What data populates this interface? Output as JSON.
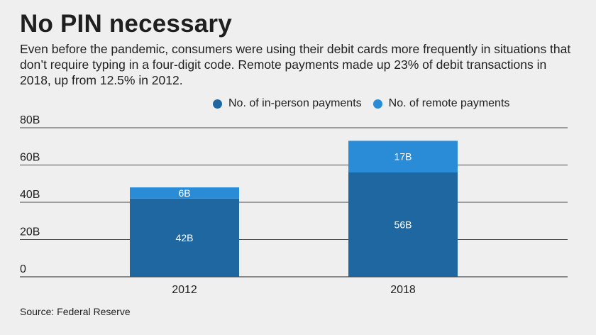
{
  "title": "No PIN necessary",
  "subtitle": "Even before the pandemic, consumers were using their debit cards more frequently in situations that don’t require typing in a four-digit code. Remote payments made up 23% of debit transactions in 2018, up from 12.5% in 2012.",
  "source": "Source: Federal Reserve",
  "colors": {
    "in_person": "#1f67a1",
    "remote": "#2a8bd6",
    "gridline": "#4a4a4a",
    "background": "#efefef"
  },
  "chart_data": {
    "type": "bar",
    "stacked": true,
    "categories": [
      "2012",
      "2018"
    ],
    "series": [
      {
        "name": "No. of in-person payments",
        "values": [
          42,
          56
        ],
        "labels": [
          "42B",
          "56B"
        ]
      },
      {
        "name": "No. of remote payments",
        "values": [
          6,
          17
        ],
        "labels": [
          "6B",
          "17B"
        ]
      }
    ],
    "y_ticks": [
      0,
      20,
      40,
      60,
      80
    ],
    "y_tick_labels": [
      "0",
      "20B",
      "40B",
      "60B",
      "80B"
    ],
    "ylim": [
      0,
      80
    ],
    "grid": true,
    "legend_position": "top-right"
  }
}
